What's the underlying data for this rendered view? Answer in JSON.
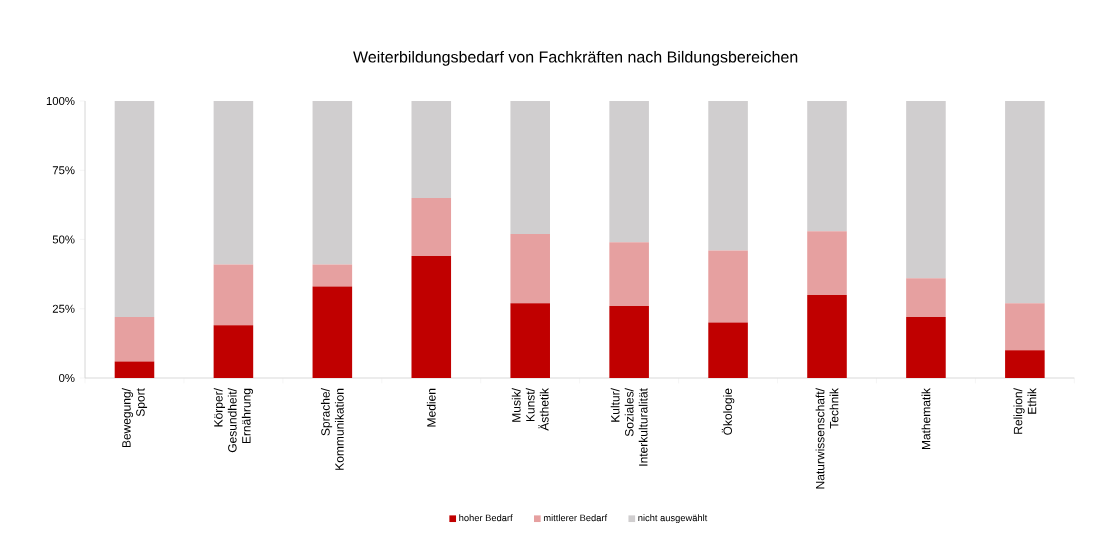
{
  "chart_data": {
    "type": "bar",
    "stacked": true,
    "title": "Weiterbildungsbedarf von Fachkräften nach Bildungsbereichen",
    "categories": [
      "Bewegung/ Sport",
      "Körper/ Gesundheit/ Ernährung",
      "Sprache/ Kommunikation",
      "Medien",
      "Musik/ Kunst/ Ästhetik",
      "Kultur/ Soziales/ Interkulturalität",
      "Ökologie",
      "Naturwissenschaft/ Technik",
      "Mathematik",
      "Religion/ Ethik"
    ],
    "series": [
      {
        "name": "hoher Bedarf",
        "color": "#c00000",
        "values": [
          6,
          19,
          33,
          44,
          27,
          26,
          20,
          30,
          22,
          10
        ]
      },
      {
        "name": "mittlerer Bedarf",
        "color": "#e6a0a0",
        "values": [
          16,
          22,
          8,
          21,
          25,
          23,
          26,
          23,
          14,
          17
        ]
      },
      {
        "name": "nicht ausgewählt",
        "color": "#d0cecf",
        "values": [
          78,
          59,
          59,
          35,
          48,
          51,
          54,
          47,
          64,
          73
        ]
      }
    ],
    "ylim": [
      0,
      100
    ],
    "yticks": [
      {
        "value": 0,
        "label": "0%"
      },
      {
        "value": 25,
        "label": "25%"
      },
      {
        "value": 50,
        "label": "50%"
      },
      {
        "value": 75,
        "label": "75%"
      },
      {
        "value": 100,
        "label": "100%"
      }
    ],
    "grid": false,
    "legend": "bottom"
  }
}
